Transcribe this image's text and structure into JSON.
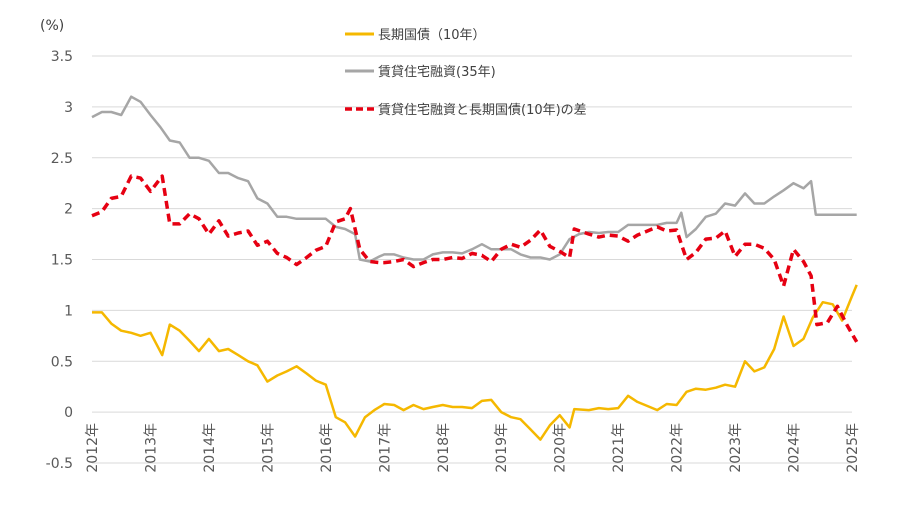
{
  "chart_data": {
    "type": "line",
    "unit_label": "(%)",
    "title": "",
    "xlabel": "",
    "ylabel": "",
    "ylim": [
      -0.5,
      3.5
    ],
    "y_ticks": [
      -0.5,
      0,
      0.5,
      1,
      1.5,
      2,
      2.5,
      3,
      3.5
    ],
    "y_tick_labels": [
      "-0.5",
      "0",
      "0.5",
      "1",
      "1.5",
      "2",
      "2.5",
      "3",
      "3.5"
    ],
    "x_ticks": [
      2012,
      2013,
      2014,
      2015,
      2016,
      2017,
      2018,
      2019,
      2020,
      2021,
      2022,
      2023,
      2024,
      2025
    ],
    "x_tick_labels": [
      "2012年",
      "2013年",
      "2014年",
      "2015年",
      "2016年",
      "2017年",
      "2018年",
      "2019年",
      "2020年",
      "2021年",
      "2022年",
      "2023年",
      "2024年",
      "2025年"
    ],
    "grid": "horizontal",
    "legend_position": "top-center",
    "series": [
      {
        "name": "長期国債（10年）",
        "color": "#f5b800",
        "style": "solid",
        "points": [
          [
            2012.0,
            0.98
          ],
          [
            2012.17,
            0.98
          ],
          [
            2012.33,
            0.87
          ],
          [
            2012.5,
            0.8
          ],
          [
            2012.67,
            0.78
          ],
          [
            2012.83,
            0.75
          ],
          [
            2013.0,
            0.78
          ],
          [
            2013.2,
            0.56
          ],
          [
            2013.33,
            0.86
          ],
          [
            2013.5,
            0.8
          ],
          [
            2013.67,
            0.7
          ],
          [
            2013.83,
            0.6
          ],
          [
            2014.0,
            0.72
          ],
          [
            2014.17,
            0.6
          ],
          [
            2014.33,
            0.62
          ],
          [
            2014.5,
            0.56
          ],
          [
            2014.67,
            0.5
          ],
          [
            2014.83,
            0.46
          ],
          [
            2015.0,
            0.3
          ],
          [
            2015.17,
            0.36
          ],
          [
            2015.33,
            0.4
          ],
          [
            2015.5,
            0.45
          ],
          [
            2015.67,
            0.38
          ],
          [
            2015.83,
            0.31
          ],
          [
            2016.0,
            0.27
          ],
          [
            2016.17,
            -0.05
          ],
          [
            2016.33,
            -0.1
          ],
          [
            2016.5,
            -0.24
          ],
          [
            2016.67,
            -0.05
          ],
          [
            2016.83,
            0.02
          ],
          [
            2017.0,
            0.08
          ],
          [
            2017.17,
            0.07
          ],
          [
            2017.33,
            0.02
          ],
          [
            2017.5,
            0.07
          ],
          [
            2017.67,
            0.03
          ],
          [
            2017.83,
            0.05
          ],
          [
            2018.0,
            0.07
          ],
          [
            2018.17,
            0.05
          ],
          [
            2018.33,
            0.05
          ],
          [
            2018.5,
            0.04
          ],
          [
            2018.67,
            0.11
          ],
          [
            2018.83,
            0.12
          ],
          [
            2019.0,
            0.0
          ],
          [
            2019.17,
            -0.05
          ],
          [
            2019.33,
            -0.07
          ],
          [
            2019.5,
            -0.17
          ],
          [
            2019.67,
            -0.27
          ],
          [
            2019.83,
            -0.13
          ],
          [
            2020.0,
            -0.03
          ],
          [
            2020.17,
            -0.15
          ],
          [
            2020.25,
            0.03
          ],
          [
            2020.5,
            0.02
          ],
          [
            2020.67,
            0.04
          ],
          [
            2020.83,
            0.03
          ],
          [
            2021.0,
            0.04
          ],
          [
            2021.17,
            0.16
          ],
          [
            2021.33,
            0.1
          ],
          [
            2021.5,
            0.06
          ],
          [
            2021.67,
            0.02
          ],
          [
            2021.83,
            0.08
          ],
          [
            2022.0,
            0.07
          ],
          [
            2022.17,
            0.2
          ],
          [
            2022.33,
            0.23
          ],
          [
            2022.5,
            0.22
          ],
          [
            2022.67,
            0.24
          ],
          [
            2022.83,
            0.27
          ],
          [
            2023.0,
            0.25
          ],
          [
            2023.17,
            0.5
          ],
          [
            2023.33,
            0.4
          ],
          [
            2023.5,
            0.44
          ],
          [
            2023.67,
            0.62
          ],
          [
            2023.83,
            0.94
          ],
          [
            2024.0,
            0.65
          ],
          [
            2024.17,
            0.72
          ],
          [
            2024.33,
            0.93
          ],
          [
            2024.5,
            1.08
          ],
          [
            2024.67,
            1.06
          ],
          [
            2024.83,
            0.9
          ],
          [
            2025.0,
            1.14
          ],
          [
            2025.08,
            1.25
          ]
        ]
      },
      {
        "name": "賃貸住宅融資(35年)",
        "color": "#a6a6a6",
        "style": "solid",
        "points": [
          [
            2012.0,
            2.9
          ],
          [
            2012.17,
            2.95
          ],
          [
            2012.33,
            2.95
          ],
          [
            2012.5,
            2.92
          ],
          [
            2012.67,
            3.1
          ],
          [
            2012.83,
            3.05
          ],
          [
            2013.0,
            2.92
          ],
          [
            2013.17,
            2.8
          ],
          [
            2013.33,
            2.67
          ],
          [
            2013.5,
            2.65
          ],
          [
            2013.67,
            2.5
          ],
          [
            2013.83,
            2.5
          ],
          [
            2014.0,
            2.47
          ],
          [
            2014.17,
            2.35
          ],
          [
            2014.33,
            2.35
          ],
          [
            2014.5,
            2.3
          ],
          [
            2014.67,
            2.27
          ],
          [
            2014.83,
            2.1
          ],
          [
            2015.0,
            2.05
          ],
          [
            2015.17,
            1.92
          ],
          [
            2015.33,
            1.92
          ],
          [
            2015.5,
            1.9
          ],
          [
            2015.67,
            1.9
          ],
          [
            2015.83,
            1.9
          ],
          [
            2016.0,
            1.9
          ],
          [
            2016.17,
            1.82
          ],
          [
            2016.33,
            1.8
          ],
          [
            2016.5,
            1.75
          ],
          [
            2016.58,
            1.5
          ],
          [
            2016.75,
            1.48
          ],
          [
            2016.92,
            1.53
          ],
          [
            2017.0,
            1.55
          ],
          [
            2017.17,
            1.55
          ],
          [
            2017.33,
            1.52
          ],
          [
            2017.5,
            1.5
          ],
          [
            2017.67,
            1.5
          ],
          [
            2017.83,
            1.55
          ],
          [
            2018.0,
            1.57
          ],
          [
            2018.17,
            1.57
          ],
          [
            2018.33,
            1.56
          ],
          [
            2018.5,
            1.6
          ],
          [
            2018.67,
            1.65
          ],
          [
            2018.83,
            1.6
          ],
          [
            2019.0,
            1.6
          ],
          [
            2019.17,
            1.6
          ],
          [
            2019.33,
            1.55
          ],
          [
            2019.5,
            1.52
          ],
          [
            2019.67,
            1.52
          ],
          [
            2019.83,
            1.5
          ],
          [
            2020.0,
            1.55
          ],
          [
            2020.17,
            1.7
          ],
          [
            2020.33,
            1.75
          ],
          [
            2020.5,
            1.77
          ],
          [
            2020.67,
            1.76
          ],
          [
            2020.83,
            1.77
          ],
          [
            2021.0,
            1.77
          ],
          [
            2021.17,
            1.84
          ],
          [
            2021.33,
            1.84
          ],
          [
            2021.5,
            1.84
          ],
          [
            2021.67,
            1.84
          ],
          [
            2021.83,
            1.86
          ],
          [
            2022.0,
            1.86
          ],
          [
            2022.08,
            1.96
          ],
          [
            2022.17,
            1.72
          ],
          [
            2022.33,
            1.8
          ],
          [
            2022.5,
            1.92
          ],
          [
            2022.67,
            1.95
          ],
          [
            2022.83,
            2.05
          ],
          [
            2023.0,
            2.03
          ],
          [
            2023.17,
            2.15
          ],
          [
            2023.33,
            2.05
          ],
          [
            2023.5,
            2.05
          ],
          [
            2023.67,
            2.12
          ],
          [
            2023.83,
            2.18
          ],
          [
            2024.0,
            2.25
          ],
          [
            2024.17,
            2.2
          ],
          [
            2024.3,
            2.27
          ],
          [
            2024.38,
            1.94
          ],
          [
            2024.5,
            1.94
          ],
          [
            2024.67,
            1.94
          ],
          [
            2024.83,
            1.94
          ],
          [
            2025.0,
            1.94
          ],
          [
            2025.08,
            1.94
          ]
        ]
      },
      {
        "name": "賃貸住宅融資と長期国債(10年)の差",
        "color": "#e60012",
        "style": "dashed",
        "points": [
          [
            2012.0,
            1.93
          ],
          [
            2012.17,
            1.97
          ],
          [
            2012.33,
            2.1
          ],
          [
            2012.5,
            2.12
          ],
          [
            2012.67,
            2.32
          ],
          [
            2012.83,
            2.3
          ],
          [
            2013.0,
            2.17
          ],
          [
            2013.2,
            2.32
          ],
          [
            2013.33,
            1.85
          ],
          [
            2013.5,
            1.85
          ],
          [
            2013.67,
            1.95
          ],
          [
            2013.83,
            1.9
          ],
          [
            2014.0,
            1.75
          ],
          [
            2014.17,
            1.88
          ],
          [
            2014.33,
            1.73
          ],
          [
            2014.5,
            1.76
          ],
          [
            2014.67,
            1.78
          ],
          [
            2014.83,
            1.64
          ],
          [
            2015.0,
            1.68
          ],
          [
            2015.17,
            1.56
          ],
          [
            2015.33,
            1.52
          ],
          [
            2015.5,
            1.45
          ],
          [
            2015.67,
            1.52
          ],
          [
            2015.83,
            1.59
          ],
          [
            2016.0,
            1.63
          ],
          [
            2016.17,
            1.87
          ],
          [
            2016.33,
            1.9
          ],
          [
            2016.42,
            2.0
          ],
          [
            2016.58,
            1.6
          ],
          [
            2016.75,
            1.48
          ],
          [
            2016.92,
            1.47
          ],
          [
            2017.0,
            1.47
          ],
          [
            2017.17,
            1.48
          ],
          [
            2017.33,
            1.5
          ],
          [
            2017.5,
            1.43
          ],
          [
            2017.67,
            1.47
          ],
          [
            2017.83,
            1.5
          ],
          [
            2018.0,
            1.5
          ],
          [
            2018.17,
            1.52
          ],
          [
            2018.33,
            1.51
          ],
          [
            2018.5,
            1.56
          ],
          [
            2018.67,
            1.54
          ],
          [
            2018.83,
            1.48
          ],
          [
            2019.0,
            1.6
          ],
          [
            2019.17,
            1.65
          ],
          [
            2019.33,
            1.62
          ],
          [
            2019.5,
            1.69
          ],
          [
            2019.67,
            1.79
          ],
          [
            2019.83,
            1.63
          ],
          [
            2020.0,
            1.58
          ],
          [
            2020.17,
            1.52
          ],
          [
            2020.25,
            1.8
          ],
          [
            2020.5,
            1.75
          ],
          [
            2020.67,
            1.72
          ],
          [
            2020.83,
            1.74
          ],
          [
            2021.0,
            1.73
          ],
          [
            2021.17,
            1.68
          ],
          [
            2021.33,
            1.74
          ],
          [
            2021.5,
            1.78
          ],
          [
            2021.67,
            1.82
          ],
          [
            2021.83,
            1.78
          ],
          [
            2022.0,
            1.79
          ],
          [
            2022.17,
            1.5
          ],
          [
            2022.33,
            1.57
          ],
          [
            2022.5,
            1.7
          ],
          [
            2022.67,
            1.71
          ],
          [
            2022.83,
            1.78
          ],
          [
            2023.0,
            1.53
          ],
          [
            2023.17,
            1.65
          ],
          [
            2023.33,
            1.65
          ],
          [
            2023.5,
            1.61
          ],
          [
            2023.67,
            1.5
          ],
          [
            2023.83,
            1.24
          ],
          [
            2024.0,
            1.6
          ],
          [
            2024.17,
            1.48
          ],
          [
            2024.3,
            1.34
          ],
          [
            2024.4,
            0.86
          ],
          [
            2024.58,
            0.88
          ],
          [
            2024.75,
            1.04
          ],
          [
            2024.92,
            0.85
          ],
          [
            2025.08,
            0.69
          ]
        ]
      }
    ]
  }
}
